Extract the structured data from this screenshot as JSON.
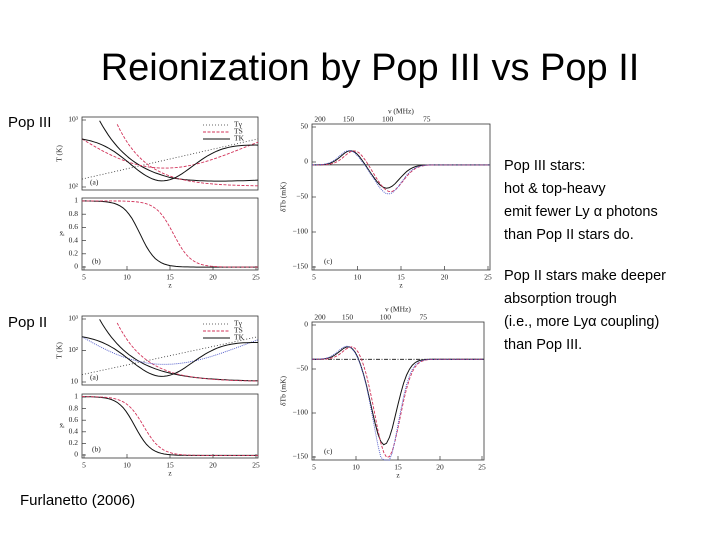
{
  "title": "Reionization by Pop III vs Pop II",
  "rows": [
    {
      "label": "Pop III"
    },
    {
      "label": "Pop II"
    }
  ],
  "notes": [
    {
      "lines": [
        "Pop III stars:",
        " hot & top-heavy",
        " emit fewer Ly α photons",
        "than  Pop II stars do."
      ]
    },
    {
      "lines": [
        "Pop II stars make deeper",
        "absorption trough",
        "(i.e., more Lyα coupling)",
        "than Pop  III."
      ]
    }
  ],
  "credit": "Furlanetto (2006)",
  "figures": [
    {
      "temp_panel": {
        "ylabel": "T (K)",
        "yticks": [
          "10³",
          "10²"
        ],
        "tag": "(a)",
        "legend": [
          "Tγ",
          "TS",
          "TK"
        ]
      },
      "xe_panel": {
        "ylabel": "x̄ᵢ",
        "yticks": [
          "1",
          "0.8",
          "0.6",
          "0.4",
          "0.2",
          "0"
        ],
        "tag": "(b)",
        "xticks": [
          "5",
          "10",
          "15",
          "20",
          "25"
        ],
        "xlabel": "z"
      },
      "tb_panel": {
        "ylabel": "δTb (mK)",
        "yticks": [
          "50",
          "0",
          "−50",
          "−100",
          "−150"
        ],
        "tag": "(c)",
        "xticks": [
          "5",
          "10",
          "15",
          "20",
          "25"
        ],
        "xlabel": "z",
        "top_label": "ν (MHz)",
        "top_ticks": [
          "200",
          "150",
          "100",
          "75"
        ]
      }
    },
    {
      "temp_panel": {
        "ylabel": "T (K)",
        "yticks": [
          "10³",
          "10²",
          "10"
        ],
        "tag": "(a)",
        "legend": [
          "Tγ",
          "TS",
          "TK"
        ]
      },
      "xe_panel": {
        "ylabel": "x̄ᵢ",
        "yticks": [
          "1",
          "0.8",
          "0.6",
          "0.4",
          "0.2",
          "0"
        ],
        "tag": "(b)",
        "xticks": [
          "5",
          "10",
          "15",
          "20",
          "25"
        ],
        "xlabel": "z"
      },
      "tb_panel": {
        "ylabel": "δTb (mK)",
        "yticks": [
          "0",
          "−50",
          "−100",
          "−150"
        ],
        "tag": "(c)",
        "xticks": [
          "5",
          "10",
          "15",
          "20",
          "25"
        ],
        "xlabel": "z",
        "top_label": "ν (MHz)",
        "top_ticks": [
          "200",
          "150",
          "100",
          "75"
        ]
      }
    }
  ]
}
